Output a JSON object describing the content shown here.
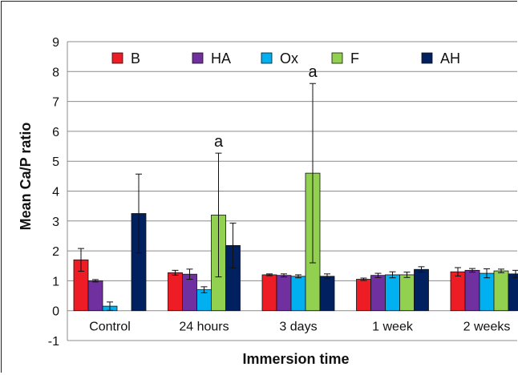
{
  "chart_data": {
    "type": "bar",
    "title": "",
    "xlabel": "Immersion time",
    "ylabel": "Mean Ca/P ratio",
    "ylim": [
      -1,
      9
    ],
    "yticks": [
      -1,
      0,
      1,
      2,
      3,
      4,
      5,
      6,
      7,
      8,
      9
    ],
    "grid": true,
    "legend_position": "top",
    "categories": [
      "Control",
      "24 hours",
      "3 days",
      "1 week",
      "2 weeks"
    ],
    "series": [
      {
        "name": "B",
        "color": "#ee1c25",
        "values": [
          1.7,
          1.27,
          1.2,
          1.05,
          1.3
        ],
        "errors": [
          0.38,
          0.08,
          0.03,
          0.04,
          0.14
        ]
      },
      {
        "name": "HA",
        "color": "#7030a0",
        "values": [
          1.0,
          1.22,
          1.18,
          1.18,
          1.35
        ],
        "errors": [
          0.04,
          0.17,
          0.05,
          0.07,
          0.06
        ]
      },
      {
        "name": "Ox",
        "color": "#00b0f0",
        "values": [
          0.15,
          0.7,
          1.15,
          1.2,
          1.25
        ],
        "errors": [
          0.14,
          0.1,
          0.05,
          0.1,
          0.15
        ]
      },
      {
        "name": "F",
        "color": "#92d050",
        "values": [
          0,
          3.2,
          4.6,
          1.2,
          1.33
        ],
        "errors": [
          0,
          2.07,
          3.0,
          0.09,
          0.06
        ]
      },
      {
        "name": "AH",
        "color": "#002060",
        "values": [
          3.25,
          2.18,
          1.15,
          1.38,
          1.23
        ],
        "errors": [
          1.32,
          0.75,
          0.08,
          0.09,
          0.12
        ]
      }
    ],
    "annotations": [
      {
        "text": "a",
        "category": "24 hours",
        "series": "F"
      },
      {
        "text": "a",
        "category": "3 days",
        "series": "F"
      }
    ]
  }
}
